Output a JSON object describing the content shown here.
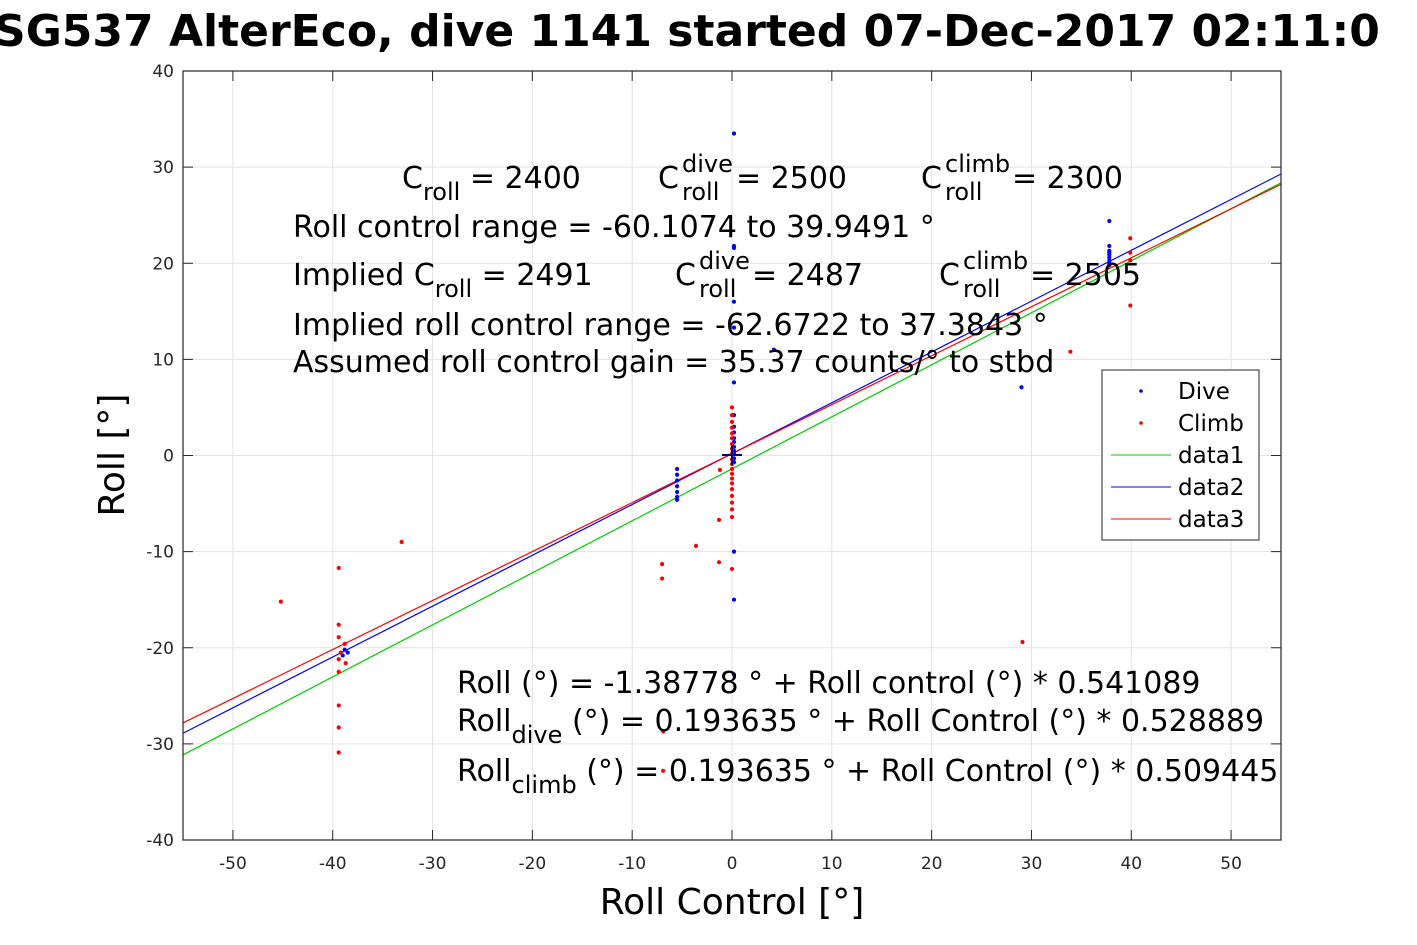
{
  "chart_data": {
    "type": "scatter",
    "title": "SG537 AlterEco, dive 1141 started 07-Dec-2017 02:11:0",
    "xlabel": "Roll Control [°]",
    "ylabel": "Roll [°]",
    "xlim": [
      -55,
      55
    ],
    "ylim": [
      -40,
      40
    ],
    "xticks": [
      -50,
      -40,
      -30,
      -20,
      -10,
      0,
      10,
      20,
      30,
      40,
      50
    ],
    "yticks": [
      -40,
      -30,
      -20,
      -10,
      0,
      10,
      20,
      30,
      40
    ],
    "grid": true,
    "legend_position": "right, inside",
    "annotations": {
      "c_roll": {
        "base": "C",
        "sub": "roll",
        "value": " = 2400"
      },
      "c_roll_dive": {
        "base": "C",
        "sup": "dive",
        "sub": "roll",
        "value": " = 2500"
      },
      "c_roll_climb": {
        "base": "C",
        "sup": "climb",
        "sub": "roll",
        "value": " = 2300"
      },
      "range": "Roll control range = -60.1074 to 39.9491 °",
      "implied_prefix": "Implied C",
      "implied_sub": "roll",
      "implied_value": " = 2491",
      "implied_dive": {
        "base": "C",
        "sup": "dive",
        "sub": "roll",
        "value": " = 2487"
      },
      "implied_climb": {
        "base": "C",
        "sup": "climb",
        "sub": "roll",
        "value": " = 2505"
      },
      "implied_range": "Implied roll control range = -62.6722 to 37.3843 °",
      "gain": "Assumed roll control gain = 35.37 counts/° to stbd",
      "fit_all": "Roll (°) = -1.38778 ° + Roll control (°) * 0.541089",
      "fit_dive_base": "Roll",
      "fit_dive_sub": "dive",
      "fit_dive_rest": " (°) = 0.193635 ° + Roll Control (°) * 0.528889",
      "fit_climb_base": "Roll",
      "fit_climb_sub": "climb",
      "fit_climb_rest": " (°) = 0.193635 ° + Roll Control (°) * 0.509445"
    },
    "series": [
      {
        "name": "Dive",
        "kind": "points",
        "color": "#0000ff",
        "points": [
          [
            0.2,
            33.5
          ],
          [
            0.2,
            21.8
          ],
          [
            0.2,
            21.6
          ],
          [
            0.2,
            16.0
          ],
          [
            0.2,
            13.3
          ],
          [
            0.2,
            7.6
          ],
          [
            0.2,
            4.2
          ],
          [
            0.2,
            3.0
          ],
          [
            0.2,
            2.4
          ],
          [
            0.2,
            1.8
          ],
          [
            0.2,
            1.4
          ],
          [
            0.2,
            0.9
          ],
          [
            0.2,
            0.5
          ],
          [
            0.2,
            0.2
          ],
          [
            0.2,
            -0.3
          ],
          [
            0.2,
            -0.7
          ],
          [
            0.2,
            -10.0
          ],
          [
            0.2,
            -15.0
          ],
          [
            0.2,
            -22.8
          ],
          [
            -5.5,
            -1.4
          ],
          [
            -5.5,
            -2.0
          ],
          [
            -5.5,
            -2.6
          ],
          [
            -5.5,
            -3.2
          ],
          [
            -5.5,
            -3.8
          ],
          [
            -5.5,
            -4.3
          ],
          [
            -5.5,
            -4.6
          ],
          [
            4.2,
            11.0
          ],
          [
            29.0,
            7.1
          ],
          [
            37.8,
            24.4
          ],
          [
            37.8,
            21.8
          ],
          [
            37.8,
            21.3
          ],
          [
            37.8,
            20.9
          ],
          [
            37.8,
            20.6
          ],
          [
            37.8,
            20.3
          ],
          [
            37.8,
            20.0
          ],
          [
            37.8,
            19.8
          ],
          [
            37.8,
            21.1
          ],
          [
            -39.0,
            -20.8
          ],
          [
            -38.8,
            -20.2
          ],
          [
            -38.5,
            -20.5
          ]
        ]
      },
      {
        "name": "Climb",
        "kind": "points",
        "color": "#ff0000",
        "points": [
          [
            -45.2,
            -15.2
          ],
          [
            -33.1,
            -9.0
          ],
          [
            -39.4,
            -11.7
          ],
          [
            -39.4,
            -17.6
          ],
          [
            -39.4,
            -18.9
          ],
          [
            -39.2,
            -20.5
          ],
          [
            -39.4,
            -21.2
          ],
          [
            -38.8,
            -19.6
          ],
          [
            -38.7,
            -21.6
          ],
          [
            -39.4,
            -22.5
          ],
          [
            -39.4,
            -26.0
          ],
          [
            -39.4,
            -28.3
          ],
          [
            -39.4,
            -30.9
          ],
          [
            -7.0,
            -11.3
          ],
          [
            -7.0,
            -12.8
          ],
          [
            -6.9,
            -28.7
          ],
          [
            -6.9,
            -32.8
          ],
          [
            -3.6,
            -9.4
          ],
          [
            -1.3,
            -6.7
          ],
          [
            -1.3,
            -11.1
          ],
          [
            -1.2,
            -1.5
          ],
          [
            0.0,
            5.0
          ],
          [
            0.0,
            4.2
          ],
          [
            0.0,
            3.5
          ],
          [
            0.0,
            2.9
          ],
          [
            0.0,
            2.3
          ],
          [
            0.0,
            1.8
          ],
          [
            0.0,
            1.2
          ],
          [
            0.0,
            0.7
          ],
          [
            0.0,
            0.2
          ],
          [
            0.0,
            -0.4
          ],
          [
            0.0,
            -0.9
          ],
          [
            0.0,
            -1.4
          ],
          [
            0.0,
            -1.9
          ],
          [
            0.0,
            -2.4
          ],
          [
            0.0,
            -2.9
          ],
          [
            0.0,
            -3.5
          ],
          [
            0.0,
            -4.2
          ],
          [
            0.0,
            -4.9
          ],
          [
            0.0,
            -5.6
          ],
          [
            0.0,
            -6.4
          ],
          [
            0.0,
            -11.8
          ],
          [
            29.1,
            -19.4
          ],
          [
            33.9,
            10.8
          ],
          [
            39.9,
            22.6
          ],
          [
            39.9,
            21.1
          ],
          [
            39.9,
            20.3
          ],
          [
            39.9,
            15.6
          ]
        ]
      },
      {
        "name": "data1",
        "kind": "line",
        "color": "#00cc00",
        "intercept": -1.38778,
        "slope": 0.541089
      },
      {
        "name": "data2",
        "kind": "line",
        "color": "#0000ff",
        "intercept": 0.193635,
        "slope": 0.528889
      },
      {
        "name": "data3",
        "kind": "line",
        "color": "#ff0000",
        "intercept": 0.193635,
        "slope": 0.509445
      }
    ]
  }
}
